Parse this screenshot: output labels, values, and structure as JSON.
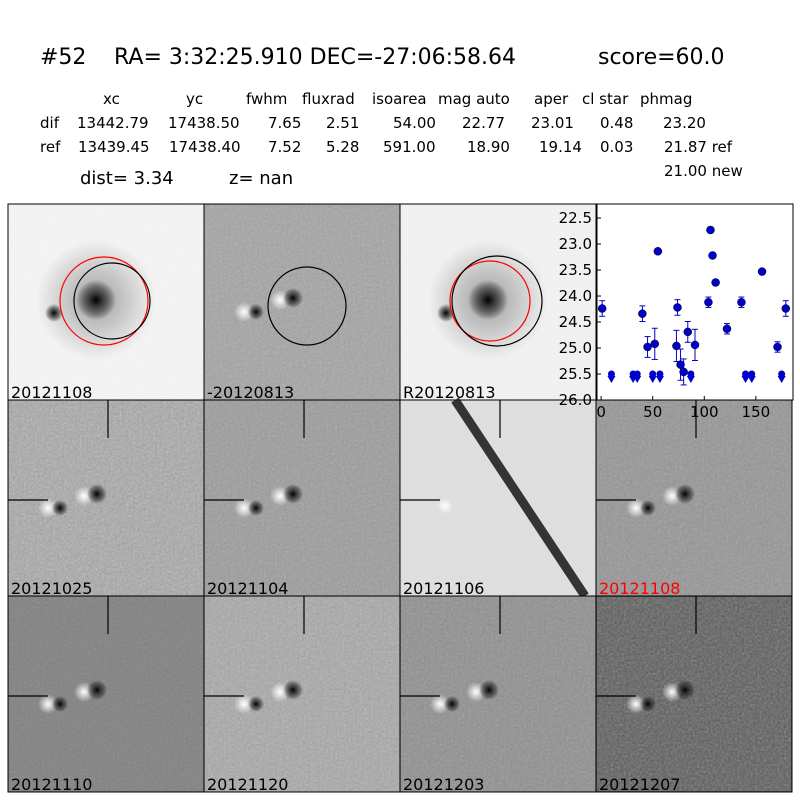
{
  "title": {
    "id": "#52",
    "coords": "RA= 3:32:25.910 DEC=-27:06:58.64",
    "score": "score=60.0"
  },
  "table": {
    "columns": [
      "xc",
      "yc",
      "fwhm",
      "fluxrad",
      "isoarea",
      "mag auto",
      "aper",
      "cl star",
      "phmag"
    ],
    "rows": [
      [
        "dif",
        "13442.79",
        "17438.50",
        "7.65",
        "2.51",
        "54.00",
        "22.77",
        "23.01",
        "0.48",
        "23.20"
      ],
      [
        "ref",
        "13439.45",
        "17438.40",
        "7.52",
        "5.28",
        "591.00",
        "18.90",
        "19.14",
        "0.03",
        "21.87 ref"
      ]
    ],
    "extra": "21.00 new"
  },
  "dist": "dist=  3.34",
  "z": "z=   nan",
  "stamps": [
    {
      "label": "20121108",
      "color": "#000000"
    },
    {
      "label": "-20120813",
      "color": "#000000"
    },
    {
      "label": "R20120813",
      "color": "#000000"
    },
    {
      "label": "20121025",
      "color": "#000000"
    },
    {
      "label": "20121104",
      "color": "#000000"
    },
    {
      "label": "20121106",
      "color": "#000000"
    },
    {
      "label": "20121108",
      "color": "#ff0000"
    },
    {
      "label": "20121110",
      "color": "#000000"
    },
    {
      "label": "20121120",
      "color": "#000000"
    },
    {
      "label": "20121203",
      "color": "#000000"
    },
    {
      "label": "20121207",
      "color": "#000000"
    }
  ],
  "chart_data": {
    "type": "scatter",
    "color": "#0000cc",
    "x": [
      1,
      40,
      55,
      45,
      52,
      74,
      73,
      77,
      80,
      84,
      91,
      104,
      106,
      108,
      111,
      122,
      136,
      156,
      171,
      179
    ],
    "values": [
      24.24,
      24.34,
      23.14,
      24.98,
      24.92,
      24.22,
      24.96,
      25.32,
      25.46,
      24.69,
      24.94,
      24.12,
      22.73,
      23.22,
      23.74,
      24.63,
      24.12,
      23.53,
      24.98,
      24.24
    ],
    "errors": [
      0.15,
      0.15,
      0.05,
      0.2,
      0.3,
      0.15,
      0.3,
      0.3,
      0.25,
      0.2,
      0.3,
      0.1,
      0.05,
      0.05,
      0.05,
      0.1,
      0.1,
      0.05,
      0.1,
      0.15
    ],
    "limits": {
      "x": [
        10,
        31,
        35,
        50,
        57,
        87,
        140,
        146,
        175
      ],
      "values": [
        25.5,
        25.5,
        25.5,
        25.5,
        25.5,
        25.5,
        25.5,
        25.5,
        25.5
      ]
    },
    "xlim": [
      -4,
      186
    ],
    "ylim": [
      26.0,
      22.23
    ],
    "xticks": [
      0,
      50,
      100,
      150
    ],
    "yticks": [
      22.5,
      {
        "value": 23,
        "label": "23.0"
      },
      23.5,
      {
        "value": 24,
        "label": "24.0"
      },
      24.5,
      {
        "value": 25,
        "label": "25.0"
      },
      25.5,
      {
        "value": 26,
        "label": "26.0"
      }
    ]
  }
}
